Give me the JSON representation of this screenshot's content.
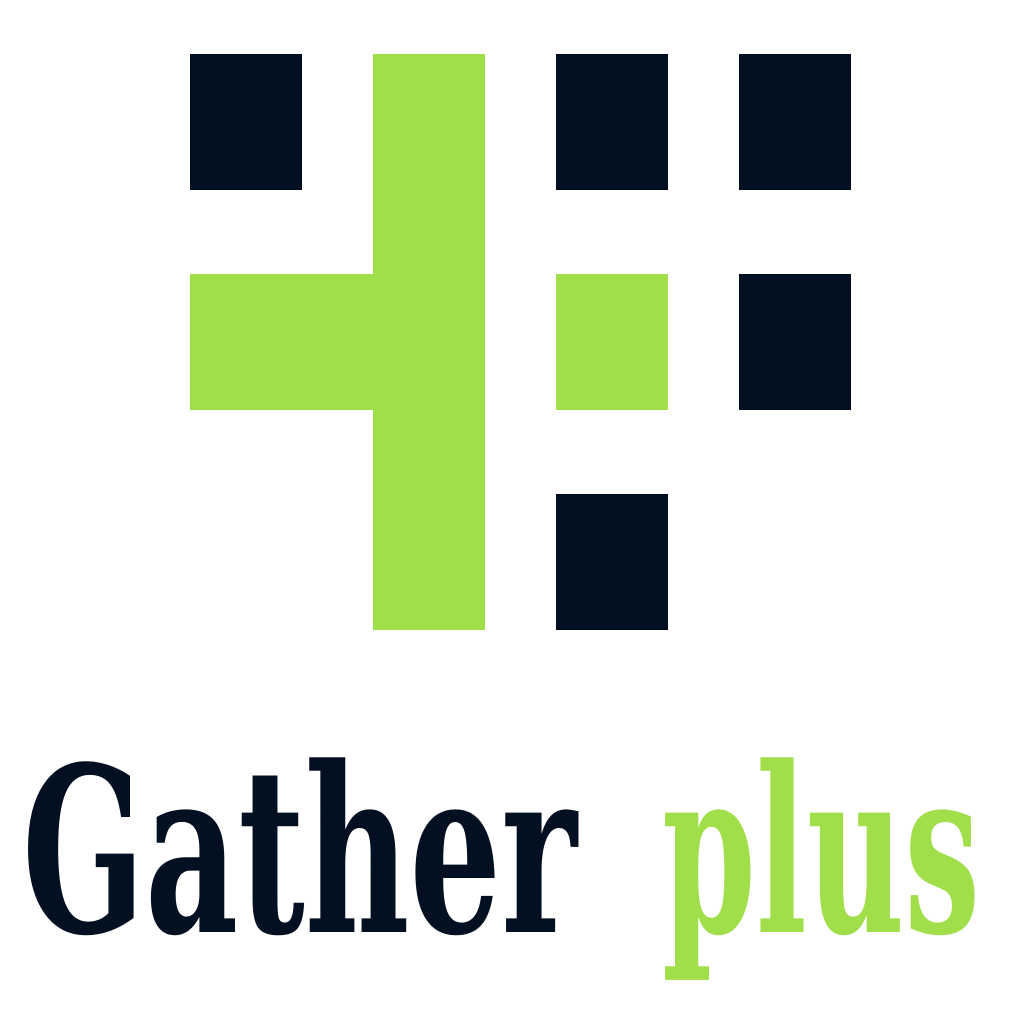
{
  "brand": {
    "name_primary": "Gather",
    "name_secondary": "plus",
    "colors": {
      "dark": "#021021",
      "green": "#a0de4a",
      "background": "#ffffff"
    },
    "logo_icon": "grid-plus-logo-icon"
  }
}
